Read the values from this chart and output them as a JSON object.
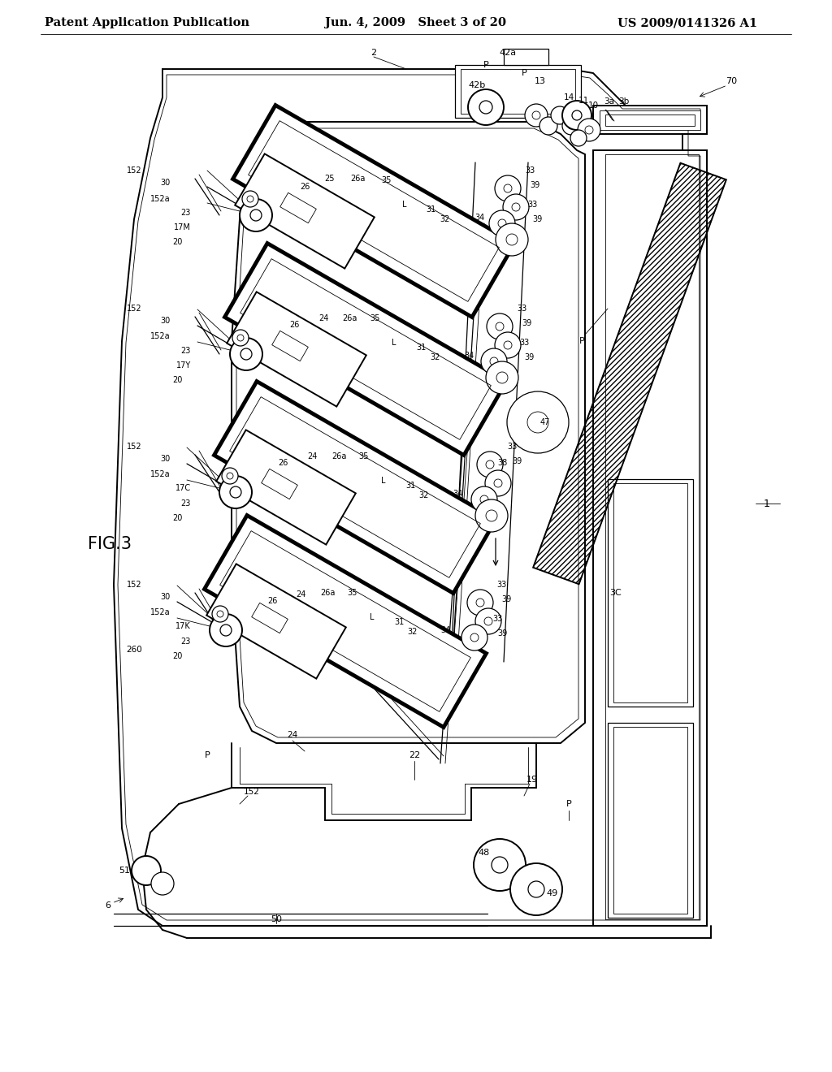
{
  "title_left": "Patent Application Publication",
  "title_center": "Jun. 4, 2009   Sheet 3 of 20",
  "title_right": "US 2009/0141326 A1",
  "fig_label": "FIG.3",
  "bg_color": "#ffffff",
  "line_color": "#000000",
  "header_fontsize": 10.5,
  "label_fontsize": 8.5
}
